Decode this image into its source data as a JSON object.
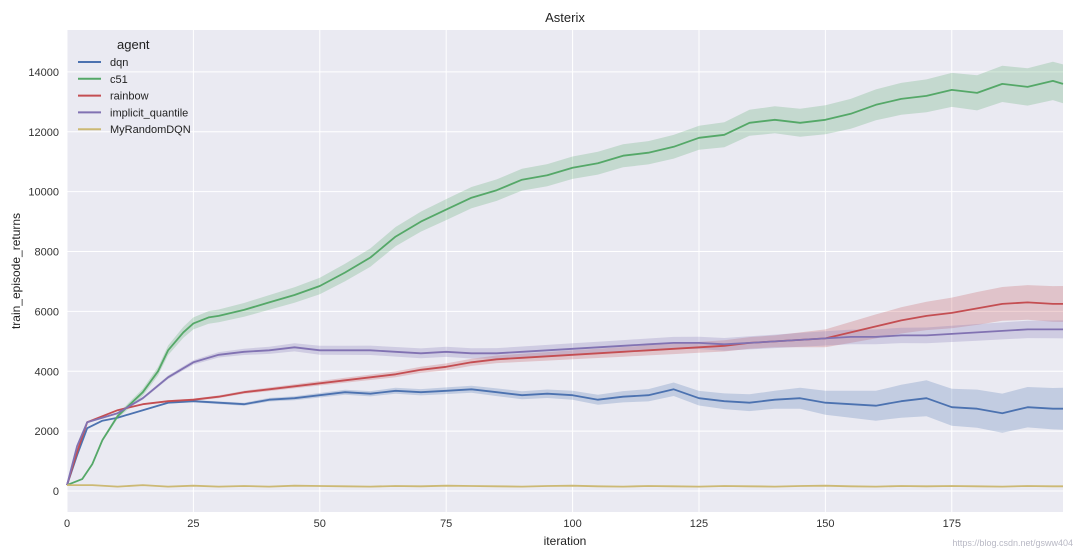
{
  "chart_data": {
    "type": "line",
    "title": "Asterix",
    "xlabel": "iteration",
    "ylabel": "train_episode_returns",
    "xlim": [
      0,
      197
    ],
    "ylim": [
      -700,
      15400
    ],
    "xticks": [
      0,
      25,
      50,
      75,
      100,
      125,
      150,
      175
    ],
    "yticks": [
      0,
      2000,
      4000,
      6000,
      8000,
      10000,
      12000,
      14000
    ],
    "grid": true,
    "legend": {
      "title": "agent",
      "position": "top-left"
    },
    "watermark": "https://blog.csdn.net/gsww404",
    "series": [
      {
        "name": "dqn",
        "color": "#4c72b0",
        "band": [
          [
            0,
            0
          ],
          [
            100,
            150
          ],
          [
            140,
            300
          ],
          [
            170,
            600
          ],
          [
            197,
            700
          ]
        ],
        "points": [
          [
            0,
            200
          ],
          [
            2,
            1200
          ],
          [
            4,
            2100
          ],
          [
            7,
            2350
          ],
          [
            10,
            2450
          ],
          [
            15,
            2700
          ],
          [
            20,
            2950
          ],
          [
            25,
            3000
          ],
          [
            30,
            2950
          ],
          [
            35,
            2900
          ],
          [
            40,
            3050
          ],
          [
            45,
            3100
          ],
          [
            50,
            3200
          ],
          [
            55,
            3300
          ],
          [
            60,
            3250
          ],
          [
            65,
            3350
          ],
          [
            70,
            3300
          ],
          [
            75,
            3350
          ],
          [
            80,
            3400
          ],
          [
            85,
            3300
          ],
          [
            90,
            3200
          ],
          [
            95,
            3250
          ],
          [
            100,
            3200
          ],
          [
            105,
            3050
          ],
          [
            110,
            3150
          ],
          [
            115,
            3200
          ],
          [
            120,
            3400
          ],
          [
            125,
            3100
          ],
          [
            130,
            3000
          ],
          [
            135,
            2950
          ],
          [
            140,
            3050
          ],
          [
            145,
            3100
          ],
          [
            150,
            2950
          ],
          [
            155,
            2900
          ],
          [
            160,
            2850
          ],
          [
            165,
            3000
          ],
          [
            170,
            3100
          ],
          [
            175,
            2800
          ],
          [
            180,
            2750
          ],
          [
            185,
            2600
          ],
          [
            190,
            2800
          ],
          [
            195,
            2750
          ],
          [
            197,
            2750
          ]
        ]
      },
      {
        "name": "c51",
        "color": "#55a868",
        "band": [
          [
            0,
            0
          ],
          [
            25,
            200
          ],
          [
            75,
            350
          ],
          [
            125,
            400
          ],
          [
            170,
            550
          ],
          [
            197,
            650
          ]
        ],
        "points": [
          [
            0,
            200
          ],
          [
            3,
            400
          ],
          [
            5,
            900
          ],
          [
            7,
            1700
          ],
          [
            10,
            2500
          ],
          [
            15,
            3300
          ],
          [
            18,
            4000
          ],
          [
            20,
            4700
          ],
          [
            23,
            5300
          ],
          [
            25,
            5600
          ],
          [
            28,
            5800
          ],
          [
            30,
            5850
          ],
          [
            35,
            6050
          ],
          [
            40,
            6300
          ],
          [
            45,
            6550
          ],
          [
            50,
            6850
          ],
          [
            55,
            7300
          ],
          [
            60,
            7800
          ],
          [
            65,
            8500
          ],
          [
            70,
            9000
          ],
          [
            75,
            9400
          ],
          [
            80,
            9800
          ],
          [
            85,
            10050
          ],
          [
            90,
            10400
          ],
          [
            95,
            10550
          ],
          [
            100,
            10800
          ],
          [
            105,
            10950
          ],
          [
            110,
            11200
          ],
          [
            115,
            11300
          ],
          [
            120,
            11500
          ],
          [
            125,
            11800
          ],
          [
            130,
            11900
          ],
          [
            135,
            12300
          ],
          [
            140,
            12400
          ],
          [
            145,
            12300
          ],
          [
            150,
            12400
          ],
          [
            155,
            12600
          ],
          [
            160,
            12900
          ],
          [
            165,
            13100
          ],
          [
            170,
            13200
          ],
          [
            175,
            13400
          ],
          [
            180,
            13300
          ],
          [
            185,
            13600
          ],
          [
            190,
            13500
          ],
          [
            195,
            13700
          ],
          [
            197,
            13600
          ]
        ]
      },
      {
        "name": "rainbow",
        "color": "#c44e52",
        "band": [
          [
            0,
            0
          ],
          [
            100,
            150
          ],
          [
            140,
            200
          ],
          [
            160,
            400
          ],
          [
            180,
            550
          ],
          [
            197,
            600
          ]
        ],
        "points": [
          [
            0,
            200
          ],
          [
            2,
            1300
          ],
          [
            4,
            2300
          ],
          [
            7,
            2500
          ],
          [
            10,
            2700
          ],
          [
            15,
            2900
          ],
          [
            20,
            3000
          ],
          [
            25,
            3050
          ],
          [
            30,
            3150
          ],
          [
            35,
            3300
          ],
          [
            40,
            3400
          ],
          [
            45,
            3500
          ],
          [
            50,
            3600
          ],
          [
            55,
            3700
          ],
          [
            60,
            3800
          ],
          [
            65,
            3900
          ],
          [
            70,
            4050
          ],
          [
            75,
            4150
          ],
          [
            80,
            4300
          ],
          [
            85,
            4400
          ],
          [
            90,
            4450
          ],
          [
            95,
            4500
          ],
          [
            100,
            4550
          ],
          [
            105,
            4600
          ],
          [
            110,
            4650
          ],
          [
            115,
            4700
          ],
          [
            120,
            4750
          ],
          [
            125,
            4800
          ],
          [
            130,
            4850
          ],
          [
            135,
            4950
          ],
          [
            140,
            5000
          ],
          [
            145,
            5050
          ],
          [
            150,
            5100
          ],
          [
            155,
            5300
          ],
          [
            160,
            5500
          ],
          [
            165,
            5700
          ],
          [
            170,
            5850
          ],
          [
            175,
            5950
          ],
          [
            180,
            6100
          ],
          [
            185,
            6250
          ],
          [
            190,
            6300
          ],
          [
            195,
            6250
          ],
          [
            197,
            6250
          ]
        ]
      },
      {
        "name": "implicit_quantile",
        "color": "#8172b2",
        "band": [
          [
            0,
            0
          ],
          [
            50,
            150
          ],
          [
            120,
            200
          ],
          [
            160,
            250
          ],
          [
            197,
            300
          ]
        ],
        "points": [
          [
            0,
            200
          ],
          [
            2,
            1500
          ],
          [
            4,
            2300
          ],
          [
            7,
            2450
          ],
          [
            10,
            2600
          ],
          [
            15,
            3100
          ],
          [
            20,
            3800
          ],
          [
            25,
            4300
          ],
          [
            30,
            4550
          ],
          [
            35,
            4650
          ],
          [
            40,
            4700
          ],
          [
            45,
            4800
          ],
          [
            50,
            4700
          ],
          [
            55,
            4700
          ],
          [
            60,
            4700
          ],
          [
            65,
            4650
          ],
          [
            70,
            4600
          ],
          [
            75,
            4650
          ],
          [
            80,
            4600
          ],
          [
            85,
            4600
          ],
          [
            90,
            4650
          ],
          [
            95,
            4700
          ],
          [
            100,
            4750
          ],
          [
            105,
            4800
          ],
          [
            110,
            4850
          ],
          [
            115,
            4900
          ],
          [
            120,
            4950
          ],
          [
            125,
            4950
          ],
          [
            130,
            4900
          ],
          [
            135,
            4950
          ],
          [
            140,
            5000
          ],
          [
            145,
            5050
          ],
          [
            150,
            5100
          ],
          [
            155,
            5150
          ],
          [
            160,
            5150
          ],
          [
            165,
            5200
          ],
          [
            170,
            5200
          ],
          [
            175,
            5250
          ],
          [
            180,
            5300
          ],
          [
            185,
            5350
          ],
          [
            190,
            5400
          ],
          [
            195,
            5400
          ],
          [
            197,
            5400
          ]
        ]
      },
      {
        "name": "MyRandomDQN",
        "color": "#ccb974",
        "band": [],
        "points": [
          [
            0,
            200
          ],
          [
            5,
            200
          ],
          [
            10,
            150
          ],
          [
            15,
            200
          ],
          [
            20,
            150
          ],
          [
            25,
            180
          ],
          [
            30,
            150
          ],
          [
            35,
            170
          ],
          [
            40,
            150
          ],
          [
            45,
            180
          ],
          [
            50,
            170
          ],
          [
            55,
            160
          ],
          [
            60,
            150
          ],
          [
            65,
            170
          ],
          [
            70,
            160
          ],
          [
            75,
            180
          ],
          [
            80,
            170
          ],
          [
            85,
            160
          ],
          [
            90,
            150
          ],
          [
            95,
            170
          ],
          [
            100,
            180
          ],
          [
            105,
            160
          ],
          [
            110,
            150
          ],
          [
            115,
            170
          ],
          [
            120,
            160
          ],
          [
            125,
            150
          ],
          [
            130,
            170
          ],
          [
            135,
            160
          ],
          [
            140,
            150
          ],
          [
            145,
            170
          ],
          [
            150,
            180
          ],
          [
            155,
            160
          ],
          [
            160,
            150
          ],
          [
            165,
            170
          ],
          [
            170,
            160
          ],
          [
            175,
            170
          ],
          [
            180,
            160
          ],
          [
            185,
            150
          ],
          [
            190,
            170
          ],
          [
            195,
            160
          ],
          [
            197,
            160
          ]
        ]
      }
    ]
  }
}
